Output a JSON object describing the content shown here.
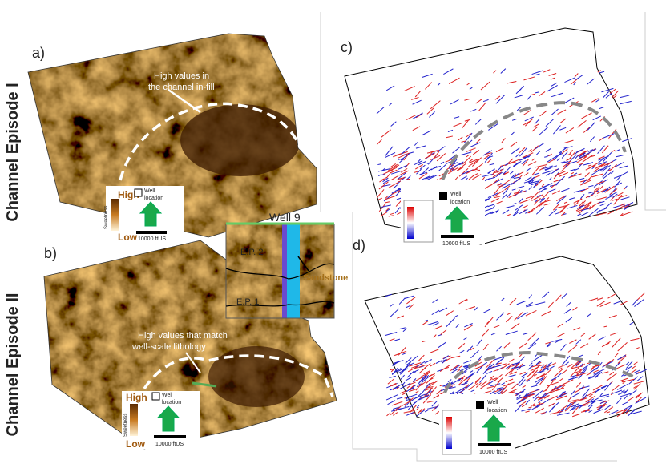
{
  "row_labels": [
    "Channel Episode I",
    "Channel Episode II"
  ],
  "panels": [
    {
      "label": "a)",
      "annotation": [
        "High values in",
        "the channel in-fill"
      ],
      "legend": {
        "high": "High",
        "low": "Low",
        "attribute": "Sweetness",
        "well": [
          "Well",
          "location"
        ],
        "scale": "10000 ftUS"
      }
    },
    {
      "label": "b)",
      "annotation": [
        "High values that match",
        "well-scale lithology"
      ],
      "legend": {
        "high": "High",
        "low": "Low",
        "attribute": "Sweetness",
        "well": [
          "Well",
          "location"
        ],
        "scale": "10000 ftUS"
      }
    },
    {
      "label": "c)",
      "legend": {
        "well": [
          "Well",
          "location"
        ],
        "scale": "10000 ftUS"
      }
    },
    {
      "label": "d)",
      "legend": {
        "well": [
          "Well",
          "location"
        ],
        "scale": "10000 ftUS"
      }
    }
  ],
  "inset": {
    "title": "Well 9",
    "horizons": [
      "E.P. 2",
      "E.P. 1"
    ],
    "lithology": "Sandstone"
  }
}
